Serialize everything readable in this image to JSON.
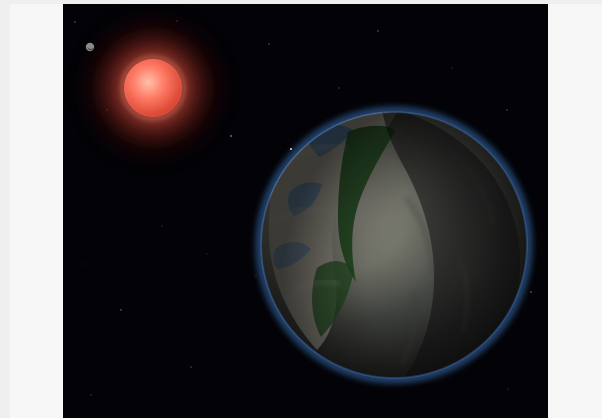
{
  "image": {
    "background_color": "#030307",
    "frame_color": "#f7f7f7",
    "page_color": "#efefef"
  },
  "icons": {
    "primary_subject": "planet-icon",
    "star": "red-dwarf-star-icon",
    "moon": "moon-icon",
    "background_detail": "star-field-icon"
  },
  "colors": {
    "star_core": "#ff8d78",
    "star_glow": "#d14a37",
    "planet_land_light": "#d8d2c2",
    "planet_land_dark": "#2f302d",
    "planet_ocean": "#4f90d8",
    "planet_forest": "#2f6d2d",
    "atmosphere_glow": "#4f9fff"
  }
}
